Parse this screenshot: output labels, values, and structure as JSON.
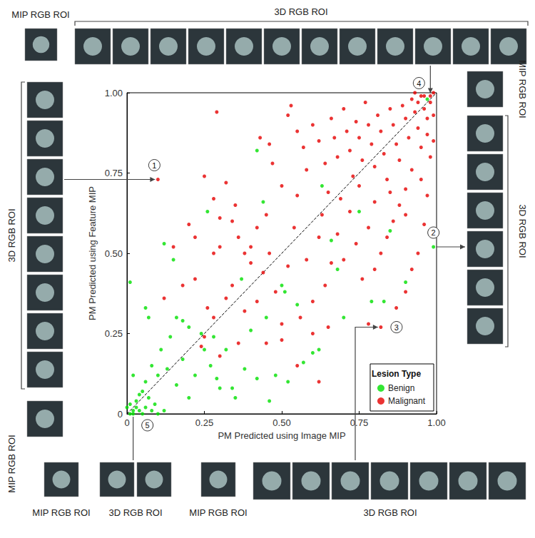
{
  "chart_data": {
    "type": "scatter",
    "x_label": "PM Predicted using Image MIP",
    "y_label": "PM Predicted using Feature MIP",
    "xlim": [
      0,
      1
    ],
    "ylim": [
      0,
      1
    ],
    "xticks": [
      0,
      0.25,
      {
        "value": 0.5,
        "label": "0.50"
      },
      0.75,
      {
        "value": 1,
        "label": "1.00"
      }
    ],
    "yticks": [
      0,
      0.25,
      {
        "value": 0.5,
        "label": "0.50"
      },
      0.75,
      {
        "value": 1,
        "label": "1.00"
      }
    ],
    "grid": false,
    "legend": "lower right",
    "legend_title": "Lesion Type",
    "series": [
      {
        "name": "Benign",
        "color": "#00e000",
        "marker": "circle",
        "x": [
          0.01,
          0.02,
          0.03,
          0.02,
          0.04,
          0.05,
          0.06,
          0.03,
          0.08,
          0.1,
          0.12,
          0.01,
          0.0,
          0.04,
          0.07,
          0.02,
          0.01,
          0.05,
          0.09,
          0.06,
          0.08,
          0.1,
          0.12,
          0.11,
          0.13,
          0.15,
          0.16,
          0.06,
          0.07,
          0.14,
          0.18,
          0.2,
          0.22,
          0.24,
          0.25,
          0.26,
          0.27,
          0.29,
          0.3,
          0.32,
          0.35,
          0.37,
          0.38,
          0.4,
          0.42,
          0.44,
          0.45,
          0.46,
          0.48,
          0.5,
          0.51,
          0.52,
          0.55,
          0.57,
          0.6,
          0.62,
          0.63,
          0.66,
          0.68,
          0.7,
          0.75,
          0.79,
          0.83,
          0.85,
          0.9,
          0.99,
          0.42,
          0.97,
          0.34,
          0.18,
          0.28,
          0.2,
          0.16
        ],
        "values": [
          0.0,
          0.01,
          0.02,
          0.0,
          0.01,
          0.0,
          0.02,
          0.04,
          0.01,
          0.0,
          0.01,
          0.03,
          0.02,
          0.06,
          0.05,
          0.12,
          0.41,
          0.07,
          0.03,
          0.1,
          0.15,
          0.12,
          0.53,
          0.2,
          0.14,
          0.48,
          0.09,
          0.33,
          0.3,
          0.24,
          0.17,
          0.05,
          0.12,
          0.25,
          0.2,
          0.63,
          0.15,
          0.11,
          0.08,
          0.2,
          0.05,
          0.42,
          0.14,
          0.26,
          0.11,
          0.66,
          0.3,
          0.04,
          0.12,
          0.4,
          0.38,
          0.1,
          0.34,
          0.16,
          0.19,
          0.2,
          0.71,
          0.54,
          0.45,
          0.3,
          0.63,
          0.35,
          0.35,
          0.57,
          0.41,
          0.52,
          0.82,
          0.98,
          0.08,
          0.29,
          0.24,
          0.27,
          0.3
        ]
      },
      {
        "name": "Malignant",
        "color": "#e60000",
        "marker": "circle",
        "x": [
          0.1,
          0.82,
          0.98,
          0.29,
          0.25,
          0.22,
          0.15,
          0.2,
          0.28,
          0.3,
          0.32,
          0.34,
          0.36,
          0.38,
          0.4,
          0.42,
          0.43,
          0.46,
          0.47,
          0.5,
          0.52,
          0.53,
          0.55,
          0.57,
          0.58,
          0.6,
          0.62,
          0.64,
          0.65,
          0.66,
          0.67,
          0.68,
          0.7,
          0.71,
          0.72,
          0.73,
          0.74,
          0.75,
          0.76,
          0.77,
          0.78,
          0.79,
          0.8,
          0.81,
          0.82,
          0.83,
          0.84,
          0.85,
          0.86,
          0.87,
          0.88,
          0.89,
          0.9,
          0.91,
          0.92,
          0.93,
          0.94,
          0.95,
          0.96,
          0.97,
          0.98,
          0.99,
          0.96,
          0.94,
          0.93,
          0.97,
          0.99,
          0.95,
          0.92,
          0.9,
          0.88,
          0.86,
          0.84,
          0.82,
          0.8,
          0.78,
          0.76,
          0.74,
          0.72,
          0.7,
          0.68,
          0.66,
          0.64,
          0.62,
          0.6,
          0.58,
          0.56,
          0.54,
          0.52,
          0.5,
          0.48,
          0.46,
          0.44,
          0.42,
          0.4,
          0.38,
          0.36,
          0.34,
          0.32,
          0.3,
          0.28,
          0.26,
          0.24,
          0.22,
          0.3,
          0.35,
          0.45,
          0.55,
          0.63,
          0.69,
          0.75,
          0.8,
          0.85,
          0.9,
          0.95,
          0.98,
          0.99,
          0.97,
          0.96,
          0.94,
          0.92,
          0.9,
          0.87,
          0.78,
          0.65,
          0.6,
          0.55,
          0.5,
          0.45,
          0.62,
          0.28,
          0.18,
          0.12,
          0.25
        ],
        "values": [
          0.73,
          0.27,
          0.99,
          0.94,
          0.74,
          0.42,
          0.52,
          0.59,
          0.67,
          0.61,
          0.72,
          0.6,
          0.55,
          0.5,
          0.52,
          0.58,
          0.86,
          0.84,
          0.78,
          0.71,
          0.93,
          0.96,
          0.88,
          0.83,
          0.76,
          0.9,
          0.85,
          0.78,
          0.69,
          0.92,
          0.86,
          0.8,
          0.95,
          0.88,
          0.82,
          0.74,
          0.91,
          0.86,
          0.79,
          0.97,
          0.9,
          0.84,
          0.77,
          0.93,
          0.88,
          0.81,
          0.73,
          0.95,
          0.9,
          0.84,
          0.79,
          0.96,
          0.92,
          0.86,
          0.98,
          0.94,
          0.89,
          0.99,
          0.95,
          0.92,
          0.97,
          1.0,
          0.99,
          0.97,
          1.0,
          0.87,
          0.93,
          0.83,
          0.76,
          0.7,
          0.65,
          0.6,
          0.55,
          0.5,
          0.45,
          0.58,
          0.42,
          0.53,
          0.63,
          0.48,
          0.56,
          0.47,
          0.4,
          0.55,
          0.35,
          0.48,
          0.3,
          0.58,
          0.46,
          0.28,
          0.38,
          0.5,
          0.44,
          0.35,
          0.47,
          0.32,
          0.22,
          0.4,
          0.36,
          0.18,
          0.3,
          0.33,
          0.21,
          0.55,
          0.52,
          0.65,
          0.62,
          0.68,
          0.62,
          0.67,
          0.71,
          0.66,
          0.69,
          0.62,
          0.73,
          0.8,
          0.85,
          0.68,
          0.59,
          0.5,
          0.45,
          0.38,
          0.33,
          0.28,
          0.27,
          0.25,
          0.15,
          0.23,
          0.22,
          0.1,
          0.5,
          0.4,
          0.36,
          0.24
        ]
      },
      {
        "type": "line",
        "line_style": "dashed",
        "color": "#000000",
        "x": [
          0,
          1
        ],
        "values": [
          0,
          1
        ]
      }
    ],
    "annotations": [
      {
        "label": "1",
        "x": 0.1,
        "y": 0.73
      },
      {
        "label": "2",
        "x": 0.99,
        "y": 0.52
      },
      {
        "label": "3",
        "x": 0.82,
        "y": 0.27
      },
      {
        "label": "4",
        "x": 0.98,
        "y": 0.99
      },
      {
        "label": "5",
        "x": 0.02,
        "y": 0.0
      }
    ],
    "panel_labels": {
      "top": [
        "MIP RGB ROI",
        "3D RGB ROI"
      ],
      "left": [
        "3D RGB ROI",
        "MIP RGB ROI"
      ],
      "right": [
        "MIP RGB ROI",
        "3D RGB ROI"
      ],
      "bottom": [
        "MIP RGB ROI",
        "3D RGB ROI",
        "MIP RGB ROI",
        "3D RGB ROI"
      ]
    }
  }
}
